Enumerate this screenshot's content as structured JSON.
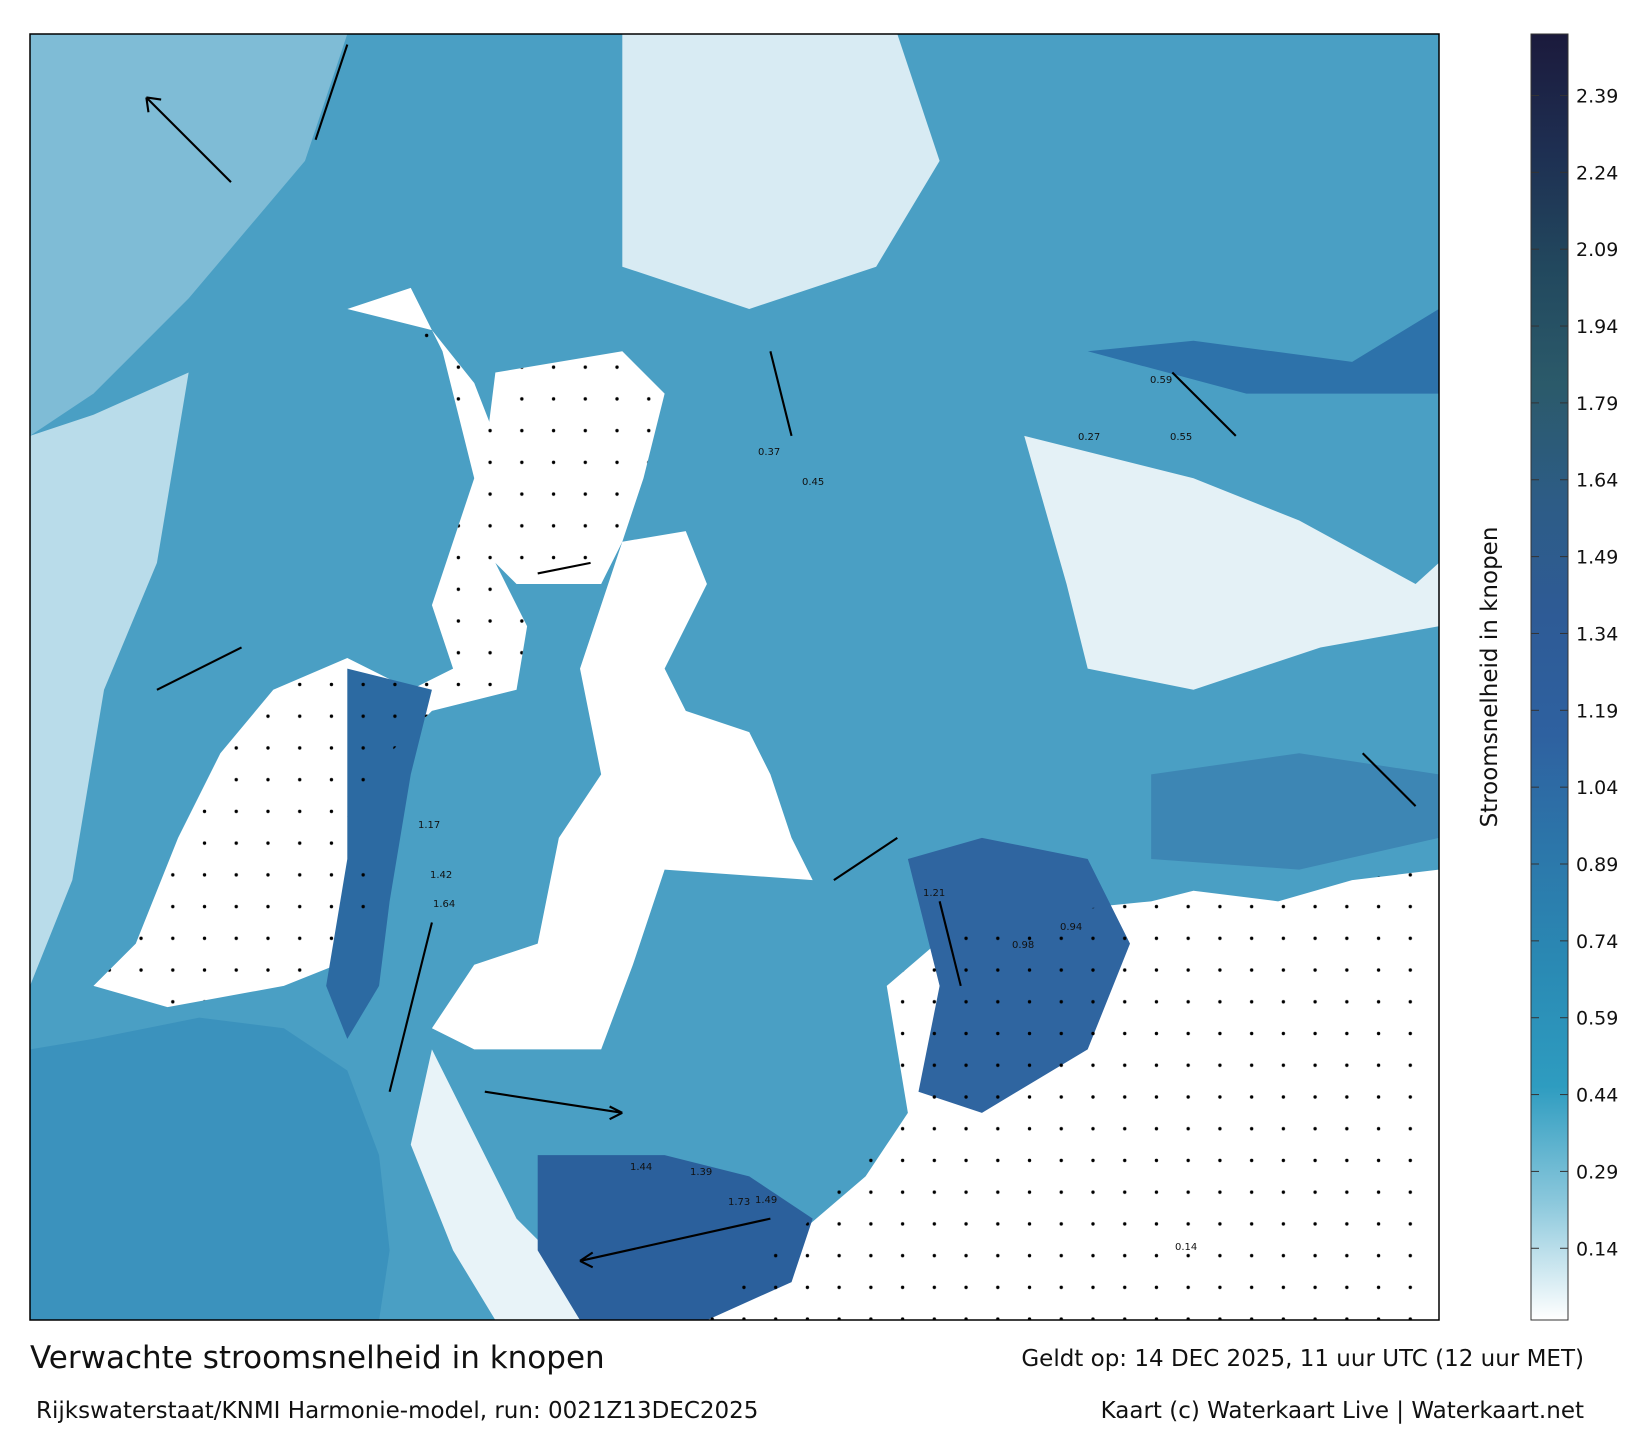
{
  "title": "Verwachte stroomsnelheid in knopen",
  "model": "Rijkswaterstaat/KNMI Harmonie-model, run: 0021Z13DEC2025",
  "valid": "Geldt op: 14 DEC 2025, 11 uur UTC (12 uur MET)",
  "credit": "Kaart (c) Waterkaart Live | Waterkaart.net",
  "colorbar": {
    "label": "Stroomsnelheid in knopen",
    "range": [
      0,
      2.51
    ],
    "ticks": [
      0.14,
      0.29,
      0.44,
      0.59,
      0.74,
      0.89,
      1.04,
      1.19,
      1.34,
      1.49,
      1.64,
      1.79,
      1.94,
      2.09,
      2.24,
      2.39
    ],
    "colors": [
      "#ffffff",
      "#8cc8dc",
      "#2e9cc0",
      "#2a8ab4",
      "#2c77aa",
      "#2e61a0",
      "#2e5b96",
      "#2d5c86",
      "#2b5a6a",
      "#22485e",
      "#1e2f52",
      "#1b1a3c"
    ]
  },
  "samples": [
    "1.44",
    "1.39",
    "1.73",
    "1.49",
    "1.64",
    "1.42",
    "1.17",
    "1.21",
    "0.98",
    "0.94",
    "0.59",
    "0.55",
    "0.45",
    "0.37",
    "0.27",
    "0.14"
  ]
}
